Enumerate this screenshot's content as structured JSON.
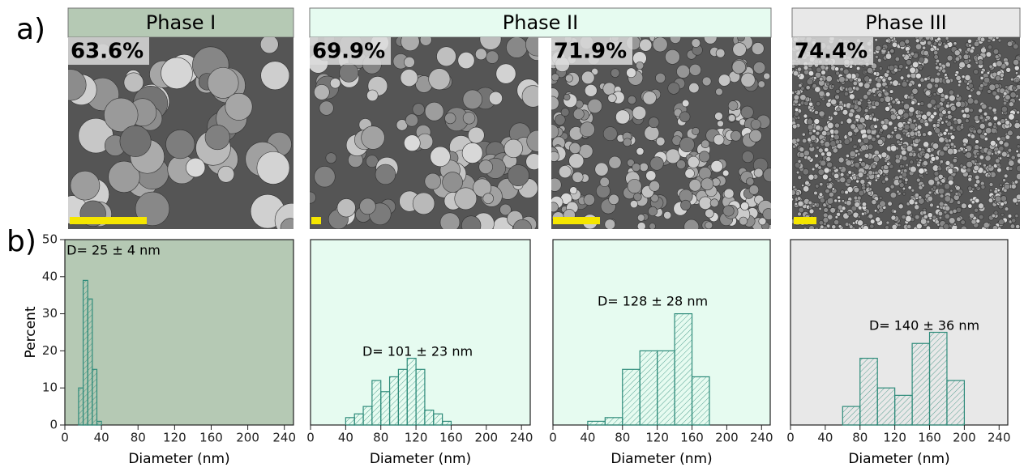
{
  "panel_labels": [
    "a)",
    "b)"
  ],
  "phases": [
    {
      "name": "Phase I",
      "color": "#b5c9b4"
    },
    {
      "name": "Phase II",
      "color": "#e6fbf0"
    },
    {
      "name": "Phase III",
      "color": "#e8e8e8"
    }
  ],
  "images": [
    {
      "label": "63.6%"
    },
    {
      "label": "69.9%"
    },
    {
      "label": "71.9%"
    },
    {
      "label": "74.4%"
    }
  ],
  "chart_data": [
    {
      "type": "histogram",
      "ylabel": "Percent",
      "xlabel": "Diameter (nm)",
      "annotation": "D= 25 ± 4 nm",
      "bins": [
        15,
        20,
        25,
        30,
        35,
        40
      ],
      "values": [
        10,
        39,
        34,
        15,
        1
      ],
      "color": "#2e8b7a",
      "background": "#b5c9b4",
      "xlim": [
        0,
        250
      ],
      "ylim": [
        0,
        50
      ],
      "xticks": [
        0,
        40,
        80,
        120,
        160,
        200,
        240
      ],
      "yticks": [
        0,
        10,
        20,
        30,
        40,
        50
      ]
    },
    {
      "type": "histogram",
      "xlabel": "Diameter (nm)",
      "annotation": "D= 101 ± 23 nm",
      "bins": [
        40,
        50,
        60,
        70,
        80,
        90,
        100,
        110,
        120,
        130,
        140,
        150,
        160
      ],
      "values": [
        2,
        3,
        5,
        12,
        9,
        13,
        15,
        18,
        15,
        4,
        3,
        1
      ],
      "color": "#2e8b7a",
      "background": "#e6fbf0",
      "xlim": [
        0,
        250
      ],
      "ylim": [
        0,
        50
      ],
      "xticks": [
        0,
        40,
        80,
        120,
        160,
        200,
        240
      ]
    },
    {
      "type": "histogram",
      "xlabel": "Diameter (nm)",
      "annotation": "D= 128 ± 28 nm",
      "bins": [
        40,
        60,
        80,
        100,
        120,
        140,
        160,
        180
      ],
      "values": [
        1,
        2,
        15,
        20,
        20,
        30,
        13
      ],
      "color": "#2e8b7a",
      "background": "#e6fbf0",
      "xlim": [
        0,
        250
      ],
      "ylim": [
        0,
        50
      ],
      "xticks": [
        0,
        40,
        80,
        120,
        160,
        200,
        240
      ]
    },
    {
      "type": "histogram",
      "xlabel": "Diameter (nm)",
      "annotation": "D= 140 ± 36 nm",
      "bins": [
        60,
        80,
        100,
        120,
        140,
        160,
        180,
        200
      ],
      "values": [
        5,
        18,
        10,
        8,
        22,
        25,
        12
      ],
      "color": "#2e8b7a",
      "background": "#e8e8e8",
      "xlim": [
        0,
        250
      ],
      "ylim": [
        0,
        50
      ],
      "xticks": [
        0,
        40,
        80,
        120,
        160,
        200,
        240
      ]
    }
  ]
}
